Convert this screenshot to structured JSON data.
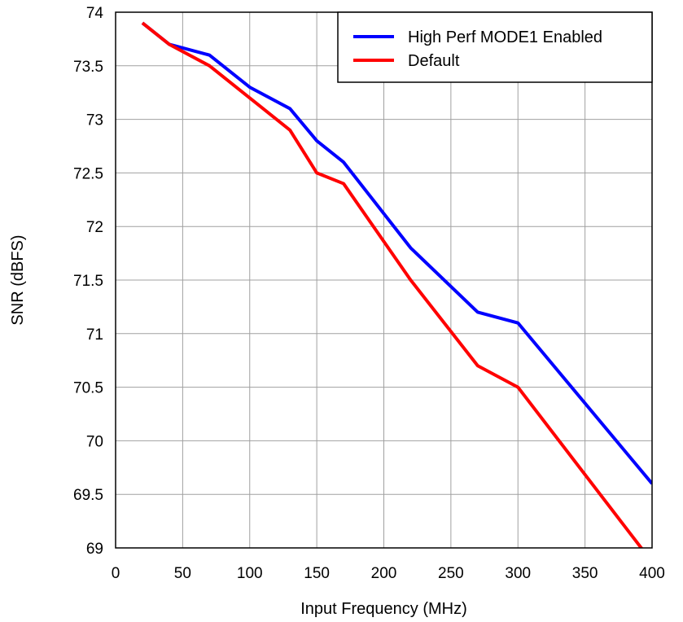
{
  "chart_data": {
    "type": "line",
    "title": "",
    "xlabel": "Input Frequency (MHz)",
    "ylabel": "SNR (dBFS)",
    "xlim": [
      0,
      400
    ],
    "ylim": [
      69,
      74
    ],
    "xticks": [
      0,
      50,
      100,
      150,
      200,
      250,
      300,
      350,
      400
    ],
    "yticks": [
      69,
      69.5,
      70,
      70.5,
      71,
      71.5,
      72,
      72.5,
      73,
      73.5,
      74
    ],
    "grid": true,
    "legend_position": "top-right",
    "series": [
      {
        "name": "High Perf MODE1 Enabled",
        "color": "#0000ff",
        "x": [
          20,
          40,
          70,
          100,
          130,
          150,
          170,
          220,
          270,
          300,
          400
        ],
        "y": [
          73.9,
          73.7,
          73.6,
          73.3,
          73.1,
          72.8,
          72.6,
          71.8,
          71.2,
          71.1,
          69.6
        ]
      },
      {
        "name": "Default",
        "color": "#ff0000",
        "x": [
          20,
          40,
          70,
          100,
          130,
          150,
          170,
          220,
          270,
          300,
          395
        ],
        "y": [
          73.9,
          73.7,
          73.5,
          73.2,
          72.9,
          72.5,
          72.4,
          71.5,
          70.7,
          70.5,
          68.95
        ]
      }
    ]
  }
}
